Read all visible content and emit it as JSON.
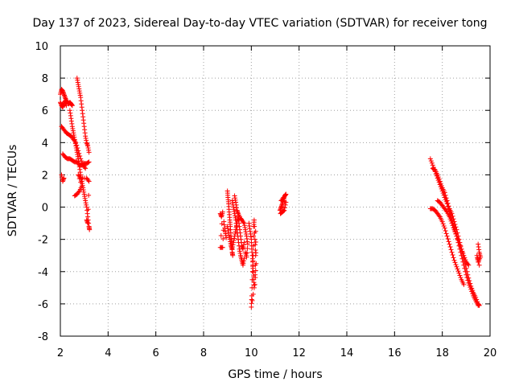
{
  "chart_data": {
    "type": "scatter",
    "title": "Day 137 of 2023, Sidereal Day-to-day VTEC variation (SDTVAR) for receiver tong",
    "xlabel": "GPS time / hours",
    "ylabel": "SDTVAR / TECUs",
    "xlim": [
      2,
      20
    ],
    "ylim": [
      -8,
      10
    ],
    "xticks": [
      "2",
      "4",
      "6",
      "8",
      "10",
      "12",
      "14",
      "16",
      "18",
      "20"
    ],
    "yticks": [
      "-8",
      "-6",
      "-4",
      "-2",
      "0",
      "2",
      "4",
      "6",
      "8",
      "10"
    ],
    "grid": true,
    "marker": "+",
    "color": "#ff0000",
    "series": [
      {
        "name": "SDTVAR",
        "segments": [
          [
            [
              2.0,
              7.0
            ],
            [
              2.05,
              7.3
            ],
            [
              2.1,
              7.2
            ],
            [
              2.15,
              7.0
            ],
            [
              2.2,
              6.8
            ],
            [
              2.25,
              6.6
            ],
            [
              2.3,
              6.5
            ],
            [
              2.35,
              6.4
            ],
            [
              2.4,
              6.5
            ],
            [
              2.45,
              6.4
            ],
            [
              2.5,
              6.3
            ]
          ],
          [
            [
              2.0,
              6.5
            ],
            [
              2.05,
              6.3
            ],
            [
              2.1,
              6.2
            ],
            [
              2.15,
              6.4
            ],
            [
              2.2,
              6.6
            ],
            [
              2.25,
              6.3
            ]
          ],
          [
            [
              2.05,
              5.0
            ],
            [
              2.15,
              4.8
            ],
            [
              2.25,
              4.6
            ],
            [
              2.35,
              4.5
            ],
            [
              2.45,
              4.4
            ],
            [
              2.55,
              4.2
            ],
            [
              2.65,
              4.0
            ],
            [
              2.75,
              3.5
            ],
            [
              2.85,
              3.0
            ],
            [
              2.95,
              2.6
            ],
            [
              3.05,
              2.4
            ]
          ],
          [
            [
              2.1,
              3.3
            ],
            [
              2.2,
              3.1
            ],
            [
              2.3,
              3.0
            ],
            [
              2.4,
              3.0
            ],
            [
              2.5,
              2.9
            ],
            [
              2.6,
              2.8
            ],
            [
              2.7,
              2.8
            ],
            [
              2.8,
              2.6
            ],
            [
              2.9,
              2.6
            ],
            [
              3.0,
              2.7
            ],
            [
              3.1,
              2.7
            ],
            [
              3.2,
              2.8
            ]
          ],
          [
            [
              2.05,
              2.0
            ],
            [
              2.1,
              1.6
            ],
            [
              2.15,
              1.8
            ]
          ],
          [
            [
              2.4,
              6.0
            ],
            [
              2.45,
              5.5
            ],
            [
              2.5,
              5.0
            ],
            [
              2.55,
              4.6
            ],
            [
              2.6,
              4.2
            ],
            [
              2.65,
              3.8
            ],
            [
              2.7,
              3.4
            ],
            [
              2.75,
              3.0
            ],
            [
              2.8,
              2.5
            ],
            [
              2.85,
              2.0
            ],
            [
              2.9,
              1.6
            ],
            [
              2.95,
              1.2
            ],
            [
              3.0,
              0.8
            ],
            [
              3.05,
              0.4
            ],
            [
              3.1,
              0.0
            ],
            [
              3.15,
              -0.6
            ],
            [
              3.2,
              -1.2
            ],
            [
              3.22,
              -1.4
            ]
          ],
          [
            [
              2.7,
              8.0
            ],
            [
              2.75,
              7.6
            ],
            [
              2.8,
              7.2
            ],
            [
              2.85,
              6.8
            ],
            [
              2.9,
              6.2
            ],
            [
              2.95,
              5.6
            ],
            [
              3.0,
              5.0
            ],
            [
              3.05,
              4.4
            ],
            [
              3.1,
              4.0
            ],
            [
              3.15,
              3.8
            ],
            [
              3.2,
              3.4
            ]
          ],
          [
            [
              2.6,
              0.7
            ],
            [
              2.7,
              0.8
            ],
            [
              2.8,
              1.0
            ],
            [
              2.9,
              1.3
            ],
            [
              2.75,
              2.0
            ],
            [
              2.85,
              1.8
            ],
            [
              3.1,
              1.8
            ],
            [
              3.2,
              1.6
            ],
            [
              3.15,
              -1.0
            ],
            [
              3.1,
              -0.8
            ]
          ],
          [
            [
              8.7,
              -0.4
            ],
            [
              8.75,
              -0.6
            ],
            [
              8.8,
              -0.3
            ],
            [
              8.7,
              -2.5
            ],
            [
              8.8,
              -2.5
            ],
            [
              8.85,
              -0.9
            ],
            [
              8.9,
              -1.5
            ],
            [
              8.95,
              -1.9
            ]
          ],
          [
            [
              9.0,
              1.0
            ],
            [
              9.02,
              0.6
            ],
            [
              9.05,
              0.2
            ],
            [
              9.07,
              -0.3
            ],
            [
              9.1,
              -0.8
            ],
            [
              9.12,
              -1.2
            ],
            [
              9.15,
              -1.8
            ],
            [
              9.17,
              -2.3
            ],
            [
              9.2,
              -2.8
            ],
            [
              9.22,
              -3.0
            ]
          ],
          [
            [
              9.0,
              -1.2
            ],
            [
              9.05,
              -1.6
            ],
            [
              9.1,
              -2.0
            ],
            [
              9.15,
              -2.4
            ],
            [
              9.2,
              -2.6
            ],
            [
              9.25,
              -2.2
            ],
            [
              9.3,
              -1.8
            ],
            [
              9.35,
              -1.4
            ],
            [
              9.4,
              -1.0
            ],
            [
              9.45,
              -0.6
            ],
            [
              9.5,
              -1.2
            ],
            [
              9.55,
              -1.8
            ],
            [
              9.6,
              -2.4
            ],
            [
              9.65,
              -2.6
            ],
            [
              9.7,
              -2.2
            ]
          ],
          [
            [
              9.2,
              0.4
            ],
            [
              9.25,
              0.0
            ],
            [
              9.3,
              -0.4
            ],
            [
              9.35,
              -0.8
            ],
            [
              9.4,
              -1.4
            ],
            [
              9.45,
              -2.0
            ],
            [
              9.5,
              -2.6
            ],
            [
              9.55,
              -3.0
            ],
            [
              9.6,
              -3.3
            ],
            [
              9.65,
              -3.6
            ],
            [
              9.7,
              -3.2
            ]
          ],
          [
            [
              9.3,
              0.7
            ],
            [
              9.35,
              0.3
            ],
            [
              9.4,
              -0.2
            ],
            [
              9.45,
              -0.4
            ],
            [
              9.55,
              -0.7
            ],
            [
              9.6,
              -0.8
            ],
            [
              9.7,
              -1.0
            ],
            [
              9.75,
              -1.4
            ],
            [
              9.8,
              -1.8
            ],
            [
              9.85,
              -2.3
            ],
            [
              9.8,
              -3.1
            ],
            [
              9.75,
              -2.8
            ]
          ],
          [
            [
              9.9,
              -1.0
            ],
            [
              9.95,
              -1.5
            ],
            [
              10.0,
              -2.0
            ],
            [
              10.02,
              -2.6
            ],
            [
              10.05,
              -3.2
            ],
            [
              10.07,
              -3.8
            ],
            [
              10.1,
              -4.5
            ],
            [
              10.12,
              -5.0
            ],
            [
              10.0,
              -6.2
            ],
            [
              10.02,
              -5.5
            ],
            [
              10.05,
              -4.0
            ],
            [
              10.08,
              -3.0
            ],
            [
              10.1,
              -1.2
            ],
            [
              10.12,
              -0.8
            ],
            [
              10.15,
              -2.0
            ],
            [
              10.18,
              -3.0
            ],
            [
              10.15,
              -4.8
            ],
            [
              10.2,
              -3.5
            ],
            [
              10.18,
              -1.5
            ]
          ],
          [
            [
              11.2,
              -0.2
            ],
            [
              11.25,
              0.0
            ],
            [
              11.3,
              0.2
            ],
            [
              11.35,
              0.5
            ],
            [
              11.4,
              0.7
            ],
            [
              11.45,
              0.8
            ],
            [
              11.22,
              -0.4
            ],
            [
              11.3,
              -0.3
            ],
            [
              11.38,
              -0.2
            ],
            [
              11.45,
              0.3
            ],
            [
              11.25,
              0.4
            ],
            [
              11.35,
              0.6
            ]
          ],
          [
            [
              17.5,
              3.0
            ],
            [
              17.6,
              2.6
            ],
            [
              17.7,
              2.2
            ],
            [
              17.8,
              1.8
            ],
            [
              17.9,
              1.4
            ],
            [
              18.0,
              1.0
            ],
            [
              18.1,
              0.6
            ],
            [
              18.2,
              0.2
            ],
            [
              18.3,
              -0.3
            ],
            [
              18.4,
              -0.8
            ],
            [
              18.5,
              -1.3
            ],
            [
              18.6,
              -1.8
            ],
            [
              18.7,
              -2.4
            ],
            [
              18.8,
              -3.0
            ],
            [
              18.9,
              -3.6
            ],
            [
              19.0,
              -4.2
            ],
            [
              19.1,
              -4.7
            ],
            [
              19.2,
              -5.1
            ],
            [
              19.3,
              -5.5
            ],
            [
              19.4,
              -5.8
            ],
            [
              19.5,
              -6.1
            ]
          ],
          [
            [
              17.6,
              2.4
            ],
            [
              17.7,
              2.3
            ],
            [
              17.8,
              2.0
            ],
            [
              17.9,
              1.6
            ],
            [
              18.0,
              1.2
            ],
            [
              18.1,
              0.9
            ],
            [
              18.2,
              0.4
            ],
            [
              18.3,
              -0.1
            ],
            [
              18.4,
              -0.4
            ],
            [
              18.5,
              -0.9
            ],
            [
              18.6,
              -1.4
            ],
            [
              18.7,
              -2.0
            ],
            [
              18.8,
              -2.6
            ],
            [
              18.9,
              -3.2
            ],
            [
              19.0,
              -3.8
            ],
            [
              19.1,
              -4.4
            ],
            [
              19.2,
              -4.9
            ],
            [
              19.3,
              -5.3
            ],
            [
              19.4,
              -5.6
            ],
            [
              19.5,
              -6.0
            ],
            [
              19.55,
              -6.1
            ]
          ],
          [
            [
              17.5,
              -0.1
            ],
            [
              17.6,
              -0.1
            ],
            [
              17.7,
              -0.2
            ],
            [
              17.8,
              -0.4
            ],
            [
              17.9,
              -0.6
            ],
            [
              18.0,
              -0.9
            ],
            [
              18.1,
              -1.3
            ],
            [
              18.2,
              -1.8
            ],
            [
              18.3,
              -2.3
            ],
            [
              18.4,
              -2.8
            ],
            [
              18.5,
              -3.3
            ],
            [
              18.6,
              -3.7
            ],
            [
              18.7,
              -4.1
            ],
            [
              18.8,
              -4.5
            ],
            [
              18.9,
              -4.8
            ]
          ],
          [
            [
              17.8,
              0.4
            ],
            [
              17.9,
              0.3
            ],
            [
              18.0,
              0.1
            ],
            [
              18.1,
              -0.1
            ],
            [
              18.2,
              -0.3
            ],
            [
              18.3,
              -0.6
            ],
            [
              18.4,
              -1.0
            ],
            [
              18.5,
              -1.4
            ],
            [
              18.6,
              -1.8
            ],
            [
              18.7,
              -2.2
            ],
            [
              18.8,
              -2.6
            ],
            [
              18.9,
              -3.0
            ],
            [
              19.0,
              -3.4
            ],
            [
              19.1,
              -3.6
            ]
          ],
          [
            [
              19.5,
              -2.3
            ],
            [
              19.55,
              -2.8
            ],
            [
              19.6,
              -3.1
            ],
            [
              19.5,
              -3.4
            ],
            [
              19.45,
              -3.0
            ],
            [
              19.55,
              -3.6
            ]
          ]
        ]
      }
    ]
  }
}
